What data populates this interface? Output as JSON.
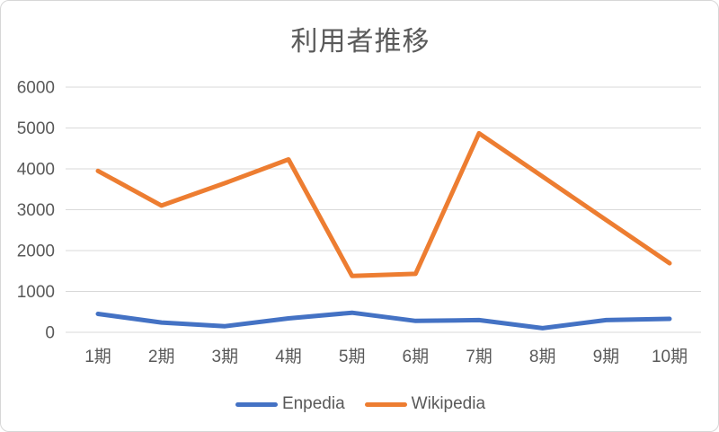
{
  "chart_data": {
    "type": "line",
    "title": "利用者推移",
    "categories": [
      "1期",
      "2期",
      "3期",
      "4期",
      "5期",
      "6期",
      "7期",
      "8期",
      "9期",
      "10期"
    ],
    "series": [
      {
        "name": "Enpedia",
        "color": "#4472C4",
        "values": [
          450,
          240,
          150,
          340,
          480,
          280,
          300,
          100,
          300,
          330
        ]
      },
      {
        "name": "Wikipedia",
        "color": "#ED7D31",
        "values": [
          3950,
          3100,
          3650,
          4230,
          1380,
          1430,
          4870,
          3810,
          2750,
          1690
        ]
      }
    ],
    "y_axis": {
      "min": 0,
      "max": 6000,
      "step": 1000,
      "tick_labels": [
        "0",
        "1000",
        "2000",
        "3000",
        "4000",
        "5000",
        "6000"
      ]
    },
    "grid": true,
    "legend_position": "bottom",
    "styles": {
      "text_color": "#595959",
      "gridline_color": "#d9d9d9",
      "background": "#ffffff",
      "line_width": 5
    }
  }
}
